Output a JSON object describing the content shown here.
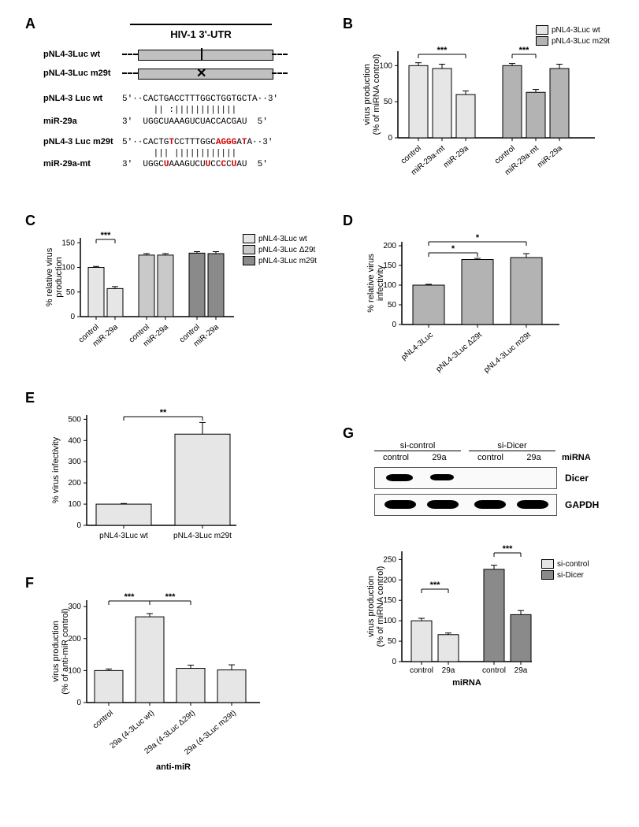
{
  "panelA": {
    "label": "A",
    "title": "HIV-1 3'-UTR",
    "constructs": [
      {
        "name": "pNL4-3Luc wt",
        "mark": "tick"
      },
      {
        "name": "pNL4-3Luc m29t",
        "mark": "x"
      }
    ],
    "seq_wt_label": "pNL4-3 Luc wt",
    "seq_wt_5": "5'··CACTGACCTTTGGCTGGTGCTA··3'",
    "seq_wt_bonds": "      || :||||||||||||",
    "seq_miR29a_label": "miR-29a",
    "seq_miR29a": "3'  UGGCUAAAGUCUACCACGAU  5'",
    "seq_m29t_label": "pNL4-3 Luc m29t",
    "seq_m29t_5": "5'··CACTG<span class='red'>T</span>CCTTTGGC<span class='red'>AGGG</span>A<span class='red'>T</span>A··3'",
    "seq_m29t_bonds": "      ||| ||||||||||||",
    "seq_miR29a_mt_label": "miR-29a-mt",
    "seq_miR29a_mt": "3'  UGGC<span class='red'>U</span>AAAGUCU<span class='red'>U</span>CC<span class='red'>C</span>C<span class='red'>U</span>AU  5'"
  },
  "panelB": {
    "label": "B",
    "ylabel": "virus production\n(% of miRNA control)",
    "ylim": [
      0,
      120
    ],
    "ytick_step": 50,
    "yticks": [
      0,
      50,
      100
    ],
    "categories_g1": [
      "control",
      "miR-29a-mt",
      "miR-29a"
    ],
    "values_g1": [
      100,
      96,
      60
    ],
    "err_g1": [
      4,
      6,
      5
    ],
    "categories_g2": [
      "control",
      "miR-29a-mt",
      "miR-29a"
    ],
    "values_g2": [
      100,
      63,
      96
    ],
    "err_g2": [
      3,
      4,
      6
    ],
    "colors": {
      "wt": "#e6e6e6",
      "m29t": "#b3b3b3"
    },
    "legend": [
      {
        "label": "pNL4-3Luc wt",
        "color": "#e6e6e6"
      },
      {
        "label": "pNL4-3Luc m29t",
        "color": "#b3b3b3"
      }
    ],
    "sig": [
      {
        "group": "g1",
        "from": 0,
        "to": 2,
        "text": "***"
      },
      {
        "group": "g2",
        "from": 0,
        "to": 1,
        "text": "***"
      }
    ],
    "bar_width": 0.7,
    "stroke": "#000"
  },
  "panelC": {
    "label": "C",
    "ylabel": "% relative virus\nproduction",
    "ylim": [
      0,
      160
    ],
    "yticks": [
      0,
      50,
      100,
      150
    ],
    "groups": [
      {
        "name": "pNL4-3Luc wt",
        "color": "#e6e6e6",
        "values": [
          100,
          57
        ],
        "err": [
          2,
          4
        ]
      },
      {
        "name": "pNL4-3Luc Δ29t",
        "color": "#c9c9c9",
        "values": [
          125,
          125
        ],
        "err": [
          3,
          3
        ]
      },
      {
        "name": "pNL4-3Luc m29t",
        "color": "#8a8a8a",
        "values": [
          129,
          128
        ],
        "err": [
          3,
          4
        ]
      }
    ],
    "xlabels": [
      "control",
      "miR-29a",
      "control",
      "miR-29a",
      "control",
      "miR-29a"
    ],
    "sig": [
      {
        "group": 0,
        "from": 0,
        "to": 1,
        "text": "***"
      }
    ],
    "legend": [
      {
        "label": "pNL4-3Luc wt",
        "color": "#e6e6e6"
      },
      {
        "label": "pNL4-3Luc Δ29t",
        "color": "#c9c9c9"
      },
      {
        "label": "pNL4-3Luc m29t",
        "color": "#8a8a8a"
      }
    ]
  },
  "panelD": {
    "label": "D",
    "ylabel": "% relative virus\ninfectivity",
    "ylim": [
      0,
      210
    ],
    "yticks": [
      0,
      50,
      100,
      150,
      200
    ],
    "categories": [
      "pNL4-3Luc",
      "pNL4-3Luc Δ29t",
      "pNL4-3Luc m29t"
    ],
    "values": [
      100,
      165,
      170
    ],
    "err": [
      2,
      3,
      10
    ],
    "color": "#b3b3b3",
    "sig": [
      {
        "from": 0,
        "to": 1,
        "text": "*"
      },
      {
        "from": 0,
        "to": 2,
        "text": "*"
      }
    ]
  },
  "panelE": {
    "label": "E",
    "ylabel": "% virus infectivity",
    "ylim": [
      0,
      520
    ],
    "yticks": [
      0,
      100,
      200,
      300,
      400,
      500
    ],
    "categories": [
      "pNL4-3Luc wt",
      "pNL4-3Luc m29t"
    ],
    "values": [
      100,
      430
    ],
    "err": [
      3,
      55
    ],
    "color": "#e6e6e6",
    "sig": [
      {
        "from": 0,
        "to": 1,
        "text": "**"
      }
    ]
  },
  "panelF": {
    "label": "F",
    "ylabel": "virus production\n(% of anti-miR control)",
    "xlabel": "anti-miR",
    "ylim": [
      0,
      320
    ],
    "yticks": [
      0,
      100,
      200,
      300
    ],
    "categories": [
      "control",
      "29a (4-3Luc wt)",
      "29a (4-3Luc Δ29t)",
      "29a (4-3Luc m29t)"
    ],
    "values": [
      100,
      268,
      107,
      102
    ],
    "err": [
      5,
      10,
      10,
      16
    ],
    "color": "#e6e6e6",
    "sig": [
      {
        "from": 0,
        "to": 1,
        "text": "***"
      },
      {
        "from": 1,
        "to": 2,
        "text": "***"
      }
    ]
  },
  "panelG": {
    "label": "G",
    "blot": {
      "top_group_labels": [
        "si-control",
        "si-Dicer"
      ],
      "col_labels": [
        "control",
        "29a",
        "control",
        "29a"
      ],
      "right_labels_top": "miRNA",
      "rows": [
        {
          "label": "Dicer",
          "bands": [
            1,
            1,
            0,
            0
          ]
        },
        {
          "label": "GAPDH",
          "bands": [
            1,
            1,
            1,
            1
          ]
        }
      ]
    },
    "chart": {
      "ylabel": "virus production\n(% of miRNA control)",
      "xlabel": "miRNA",
      "ylim": [
        0,
        270
      ],
      "yticks": [
        0,
        50,
        100,
        150,
        200,
        250
      ],
      "groups": [
        {
          "name": "si-control",
          "color": "#e6e6e6",
          "values": [
            100,
            66
          ],
          "err": [
            6,
            4
          ]
        },
        {
          "name": "si-Dicer",
          "color": "#8a8a8a",
          "values": [
            226,
            115
          ],
          "err": [
            10,
            10
          ]
        }
      ],
      "xlabels": [
        "control",
        "29a",
        "control",
        "29a"
      ],
      "sig": [
        {
          "group": 0,
          "from": 0,
          "to": 1,
          "text": "***"
        },
        {
          "group": 1,
          "from": 0,
          "to": 1,
          "text": "***"
        }
      ],
      "legend": [
        {
          "label": "si-control",
          "color": "#e6e6e6"
        },
        {
          "label": "si-Dicer",
          "color": "#8a8a8a"
        }
      ]
    }
  },
  "style": {
    "axis_color": "#000000",
    "font_size_axis": 10,
    "font_size_labels": 11,
    "background": "#ffffff"
  }
}
